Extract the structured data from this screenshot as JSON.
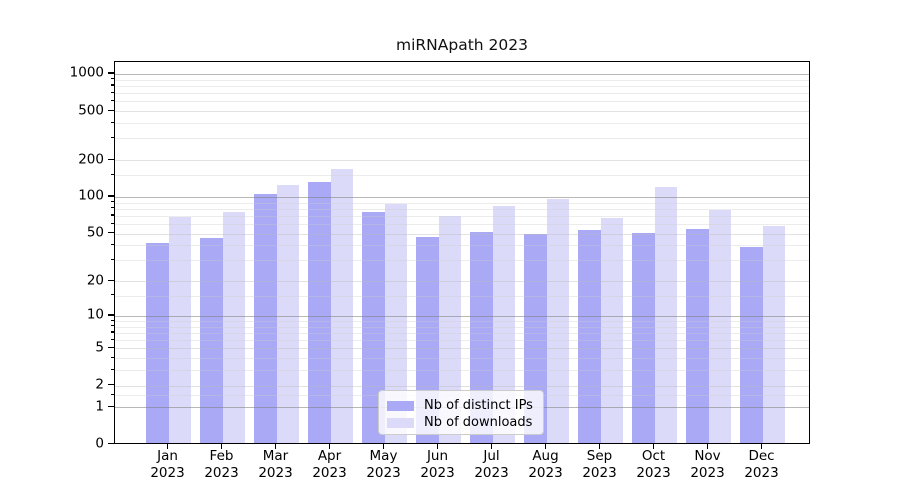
{
  "chart_data": {
    "type": "bar",
    "title": "miRNApath 2023",
    "categories": [
      "Jan\n2023",
      "Feb\n2023",
      "Mar\n2023",
      "Apr\n2023",
      "May\n2023",
      "Jun\n2023",
      "Jul\n2023",
      "Aug\n2023",
      "Sep\n2023",
      "Oct\n2023",
      "Nov\n2023",
      "Dec\n2023"
    ],
    "series": [
      {
        "name": "Nb of distinct IPs",
        "color": "#a9a9f6",
        "values": [
          40,
          44,
          102,
          128,
          73,
          45,
          50,
          48,
          52,
          49,
          53,
          37
        ]
      },
      {
        "name": "Nb of downloads",
        "color": "#dbdbf9",
        "values": [
          66,
          73,
          121,
          162,
          84,
          67,
          81,
          92,
          65,
          117,
          76,
          56
        ]
      }
    ],
    "xlabel": "",
    "ylabel": "",
    "y_ticks": [
      0,
      1,
      2,
      5,
      10,
      20,
      50,
      100,
      200,
      500,
      1000
    ],
    "y_scale": "log(value+1)",
    "ylim": [
      0,
      1250
    ],
    "grid": true,
    "grid_position": "above-bars",
    "legend_position": "lower center",
    "colors": {
      "grid_major": "rgba(125,125,125,0.55)",
      "grid_labeled": "rgba(185,185,185,0.42)",
      "grid_minor": "rgba(205,205,205,0.38)",
      "axis": "#000000",
      "background": "#ffffff"
    }
  }
}
